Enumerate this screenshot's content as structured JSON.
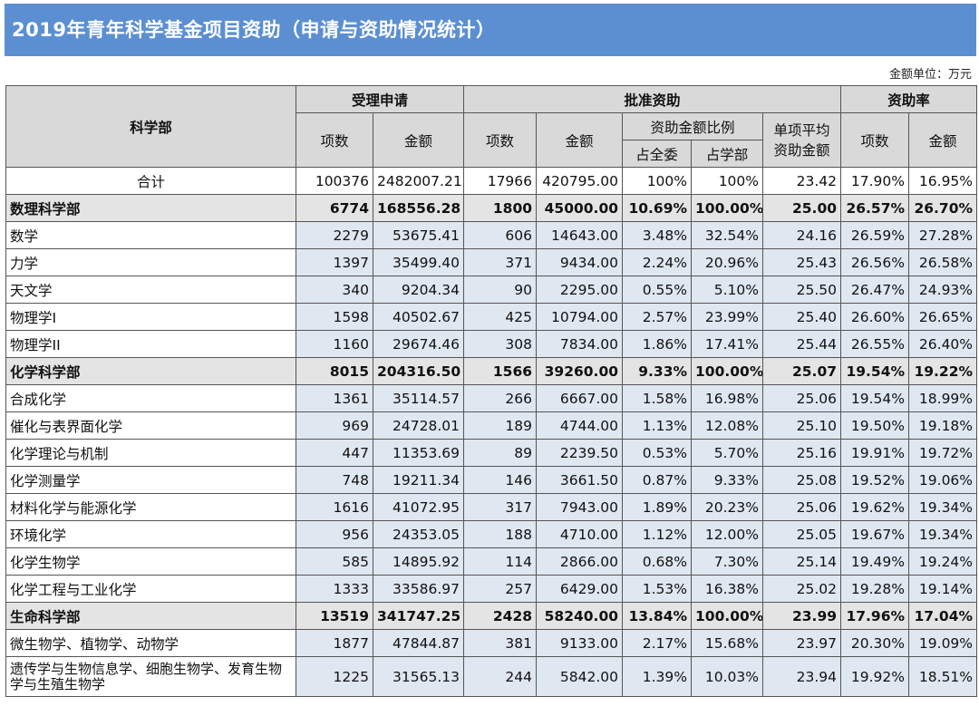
{
  "title": "2019年青年科学基金项目资助（申请与资助情况统计）",
  "unit_note": "金额单位：万元",
  "headers": {
    "dept": "科学部",
    "apply": "受理申请",
    "approve": "批准资助",
    "rate": "资助率",
    "count": "项数",
    "amount": "金额",
    "ratio": "资助金额比例",
    "ratio_all": "占全委",
    "ratio_dept": "占学部",
    "avg": "单项平均资助金额",
    "avg_line1": "单项平均",
    "avg_line2": "资助金额"
  },
  "rows": [
    {
      "type": "total",
      "name": "合计",
      "apply_count": "100376",
      "apply_amount": "2482007.21",
      "appr_count": "17966",
      "appr_amount": "420795.00",
      "ratio_all": "100%",
      "ratio_dept": "100%",
      "avg": "23.42",
      "rate_count": "17.90%",
      "rate_amount": "16.95%"
    },
    {
      "type": "dept",
      "name": "数理科学部",
      "apply_count": "6774",
      "apply_amount": "168556.28",
      "appr_count": "1800",
      "appr_amount": "45000.00",
      "ratio_all": "10.69%",
      "ratio_dept": "100.00%",
      "avg": "25.00",
      "rate_count": "26.57%",
      "rate_amount": "26.70%"
    },
    {
      "type": "sub",
      "name": "数学",
      "apply_count": "2279",
      "apply_amount": "53675.41",
      "appr_count": "606",
      "appr_amount": "14643.00",
      "ratio_all": "3.48%",
      "ratio_dept": "32.54%",
      "avg": "24.16",
      "rate_count": "26.59%",
      "rate_amount": "27.28%"
    },
    {
      "type": "sub",
      "name": "力学",
      "apply_count": "1397",
      "apply_amount": "35499.40",
      "appr_count": "371",
      "appr_amount": "9434.00",
      "ratio_all": "2.24%",
      "ratio_dept": "20.96%",
      "avg": "25.43",
      "rate_count": "26.56%",
      "rate_amount": "26.58%"
    },
    {
      "type": "sub",
      "name": "天文学",
      "apply_count": "340",
      "apply_amount": "9204.34",
      "appr_count": "90",
      "appr_amount": "2295.00",
      "ratio_all": "0.55%",
      "ratio_dept": "5.10%",
      "avg": "25.50",
      "rate_count": "26.47%",
      "rate_amount": "24.93%"
    },
    {
      "type": "sub",
      "name": "物理学I",
      "apply_count": "1598",
      "apply_amount": "40502.67",
      "appr_count": "425",
      "appr_amount": "10794.00",
      "ratio_all": "2.57%",
      "ratio_dept": "23.99%",
      "avg": "25.40",
      "rate_count": "26.60%",
      "rate_amount": "26.65%"
    },
    {
      "type": "sub",
      "name": "物理学II",
      "apply_count": "1160",
      "apply_amount": "29674.46",
      "appr_count": "308",
      "appr_amount": "7834.00",
      "ratio_all": "1.86%",
      "ratio_dept": "17.41%",
      "avg": "25.44",
      "rate_count": "26.55%",
      "rate_amount": "26.40%"
    },
    {
      "type": "dept",
      "name": "化学科学部",
      "apply_count": "8015",
      "apply_amount": "204316.50",
      "appr_count": "1566",
      "appr_amount": "39260.00",
      "ratio_all": "9.33%",
      "ratio_dept": "100.00%",
      "avg": "25.07",
      "rate_count": "19.54%",
      "rate_amount": "19.22%"
    },
    {
      "type": "sub",
      "name": "合成化学",
      "apply_count": "1361",
      "apply_amount": "35114.57",
      "appr_count": "266",
      "appr_amount": "6667.00",
      "ratio_all": "1.58%",
      "ratio_dept": "16.98%",
      "avg": "25.06",
      "rate_count": "19.54%",
      "rate_amount": "18.99%"
    },
    {
      "type": "sub",
      "name": "催化与表界面化学",
      "apply_count": "969",
      "apply_amount": "24728.01",
      "appr_count": "189",
      "appr_amount": "4744.00",
      "ratio_all": "1.13%",
      "ratio_dept": "12.08%",
      "avg": "25.10",
      "rate_count": "19.50%",
      "rate_amount": "19.18%"
    },
    {
      "type": "sub",
      "name": "化学理论与机制",
      "apply_count": "447",
      "apply_amount": "11353.69",
      "appr_count": "89",
      "appr_amount": "2239.50",
      "ratio_all": "0.53%",
      "ratio_dept": "5.70%",
      "avg": "25.16",
      "rate_count": "19.91%",
      "rate_amount": "19.72%"
    },
    {
      "type": "sub",
      "name": "化学测量学",
      "apply_count": "748",
      "apply_amount": "19211.34",
      "appr_count": "146",
      "appr_amount": "3661.50",
      "ratio_all": "0.87%",
      "ratio_dept": "9.33%",
      "avg": "25.08",
      "rate_count": "19.52%",
      "rate_amount": "19.06%"
    },
    {
      "type": "sub",
      "name": "材料化学与能源化学",
      "apply_count": "1616",
      "apply_amount": "41072.95",
      "appr_count": "317",
      "appr_amount": "7943.00",
      "ratio_all": "1.89%",
      "ratio_dept": "20.23%",
      "avg": "25.06",
      "rate_count": "19.62%",
      "rate_amount": "19.34%"
    },
    {
      "type": "sub",
      "name": "环境化学",
      "apply_count": "956",
      "apply_amount": "24353.05",
      "appr_count": "188",
      "appr_amount": "4710.00",
      "ratio_all": "1.12%",
      "ratio_dept": "12.00%",
      "avg": "25.05",
      "rate_count": "19.67%",
      "rate_amount": "19.34%"
    },
    {
      "type": "sub",
      "name": "化学生物学",
      "apply_count": "585",
      "apply_amount": "14895.92",
      "appr_count": "114",
      "appr_amount": "2866.00",
      "ratio_all": "0.68%",
      "ratio_dept": "7.30%",
      "avg": "25.14",
      "rate_count": "19.49%",
      "rate_amount": "19.24%"
    },
    {
      "type": "sub",
      "name": "化学工程与工业化学",
      "apply_count": "1333",
      "apply_amount": "33586.97",
      "appr_count": "257",
      "appr_amount": "6429.00",
      "ratio_all": "1.53%",
      "ratio_dept": "16.38%",
      "avg": "25.02",
      "rate_count": "19.28%",
      "rate_amount": "19.14%"
    },
    {
      "type": "dept",
      "name": "生命科学部",
      "apply_count": "13519",
      "apply_amount": "341747.25",
      "appr_count": "2428",
      "appr_amount": "58240.00",
      "ratio_all": "13.84%",
      "ratio_dept": "100.00%",
      "avg": "23.99",
      "rate_count": "17.96%",
      "rate_amount": "17.04%"
    },
    {
      "type": "sub",
      "name": "微生物学、植物学、动物学",
      "apply_count": "1877",
      "apply_amount": "47844.87",
      "appr_count": "381",
      "appr_amount": "9133.00",
      "ratio_all": "2.17%",
      "ratio_dept": "15.68%",
      "avg": "23.97",
      "rate_count": "20.30%",
      "rate_amount": "19.09%"
    },
    {
      "type": "sub",
      "name": "遗传学与生物信息学、细胞生物学、发育生物学与生殖生物学",
      "apply_count": "1225",
      "apply_amount": "31565.13",
      "appr_count": "244",
      "appr_amount": "5842.00",
      "ratio_all": "1.39%",
      "ratio_dept": "10.03%",
      "avg": "23.94",
      "rate_count": "19.92%",
      "rate_amount": "18.51%"
    }
  ]
}
